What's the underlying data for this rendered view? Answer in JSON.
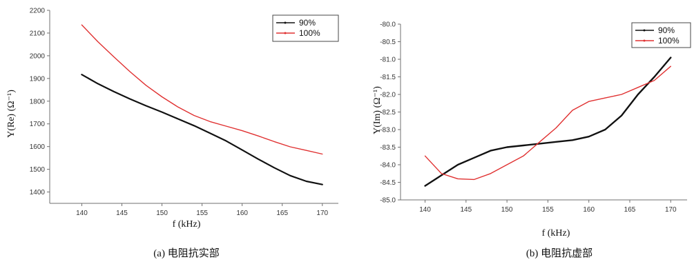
{
  "chart_data": [
    {
      "type": "line",
      "caption": "(a) 电阻抗实部",
      "xlabel": "f (kHz)",
      "ylabel": "Y(Re) (Ω⁻¹)",
      "xlim": [
        136,
        172
      ],
      "ylim": [
        1350,
        2200
      ],
      "xticks": [
        140,
        145,
        150,
        155,
        160,
        165,
        170
      ],
      "yticks": [
        1400,
        1500,
        1600,
        1700,
        1800,
        1900,
        2000,
        2100,
        2200
      ],
      "legend_position": "top-right",
      "grid": false,
      "series": [
        {
          "name": "90%",
          "color": "#111111",
          "x": [
            140,
            142,
            144,
            146,
            148,
            150,
            152,
            154,
            156,
            158,
            160,
            162,
            164,
            166,
            168,
            170
          ],
          "y": [
            1917,
            1877,
            1842,
            1810,
            1780,
            1752,
            1722,
            1692,
            1659,
            1625,
            1585,
            1545,
            1507,
            1472,
            1447,
            1433
          ]
        },
        {
          "name": "100%",
          "color": "#e03030",
          "x": [
            140,
            142,
            144,
            146,
            148,
            150,
            152,
            154,
            156,
            158,
            160,
            162,
            164,
            166,
            168,
            170
          ],
          "y": [
            2136,
            2062,
            1995,
            1930,
            1870,
            1819,
            1774,
            1737,
            1710,
            1690,
            1670,
            1647,
            1622,
            1599,
            1583,
            1567
          ]
        }
      ]
    },
    {
      "type": "line",
      "caption": "(b) 电阻抗虚部",
      "xlabel": "f (kHz)",
      "ylabel": "Y(Im) (Ω⁻¹)",
      "xlim": [
        137,
        172
      ],
      "ylim": [
        -85.0,
        -80.0
      ],
      "xticks": [
        140,
        145,
        150,
        155,
        160,
        165,
        170
      ],
      "yticks": [
        -80.0,
        -80.5,
        -81.0,
        -81.5,
        -82.0,
        -82.5,
        -83.0,
        -83.5,
        -84.0,
        -84.5,
        -85.0
      ],
      "legend_position": "top-right",
      "grid": false,
      "series": [
        {
          "name": "90%",
          "color": "#111111",
          "x": [
            140,
            142,
            144,
            146,
            148,
            150,
            152,
            154,
            156,
            158,
            160,
            162,
            164,
            166,
            168,
            170
          ],
          "y": [
            -84.6,
            -84.3,
            -84.0,
            -83.8,
            -83.6,
            -83.5,
            -83.45,
            -83.4,
            -83.35,
            -83.3,
            -83.2,
            -83.0,
            -82.6,
            -82.0,
            -81.5,
            -80.95
          ]
        },
        {
          "name": "100%",
          "color": "#e03030",
          "x": [
            140,
            142,
            144,
            146,
            148,
            150,
            152,
            154,
            156,
            158,
            160,
            162,
            164,
            166,
            168,
            170
          ],
          "y": [
            -83.75,
            -84.25,
            -84.4,
            -84.42,
            -84.25,
            -84.0,
            -83.75,
            -83.35,
            -82.95,
            -82.45,
            -82.2,
            -82.1,
            -82.0,
            -81.8,
            -81.6,
            -81.2
          ]
        }
      ]
    }
  ]
}
